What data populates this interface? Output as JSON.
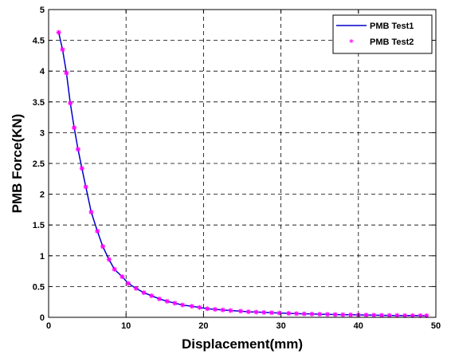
{
  "chart_data": {
    "type": "line",
    "title": "",
    "xlabel": "Displacement(mm)",
    "ylabel": "PMB Force(KN)",
    "xlim": [
      0,
      50
    ],
    "ylim": [
      0,
      5
    ],
    "xticks": [
      0,
      10,
      20,
      30,
      40,
      50
    ],
    "yticks": [
      0,
      0.5,
      1,
      1.5,
      2,
      2.5,
      3,
      3.5,
      4,
      4.5,
      5
    ],
    "grid": true,
    "legend_position": "top-right",
    "series": [
      {
        "name": "PMB Test1",
        "style": "line",
        "color": "#0000cc",
        "x": [
          1.3,
          1.8,
          2.3,
          2.8,
          3.3,
          3.8,
          4.3,
          4.8,
          5.5,
          6.3,
          7.0,
          7.8,
          8.5,
          9.5,
          10.3,
          11.3,
          12.3,
          13.3,
          14.3,
          15.3,
          16.3,
          17.3,
          18.5,
          19.5,
          20.5,
          21.5,
          22.5,
          23.5,
          24.8,
          25.8,
          26.8,
          27.8,
          28.8,
          29.8,
          31.0,
          32.0,
          33.0,
          34.0,
          35.0,
          36.0,
          37.0,
          38.0,
          39.0,
          40.0,
          41.0,
          42.0,
          43.0,
          44.0,
          45.0,
          46.0,
          47.0,
          48.0,
          48.8
        ],
        "y": [
          4.63,
          4.35,
          3.97,
          3.48,
          3.08,
          2.73,
          2.42,
          2.12,
          1.71,
          1.4,
          1.15,
          0.94,
          0.78,
          0.66,
          0.55,
          0.47,
          0.4,
          0.35,
          0.3,
          0.26,
          0.23,
          0.2,
          0.18,
          0.16,
          0.14,
          0.13,
          0.12,
          0.11,
          0.1,
          0.09,
          0.085,
          0.08,
          0.075,
          0.07,
          0.065,
          0.06,
          0.057,
          0.054,
          0.051,
          0.048,
          0.045,
          0.043,
          0.041,
          0.039,
          0.037,
          0.035,
          0.033,
          0.031,
          0.03,
          0.029,
          0.028,
          0.027,
          0.026
        ]
      },
      {
        "name": "PMB Test2",
        "style": "markers",
        "color": "#ff00ff",
        "marker": "*",
        "x": [
          1.3,
          1.8,
          2.3,
          2.8,
          3.3,
          3.8,
          4.3,
          4.8,
          5.5,
          6.3,
          7.0,
          7.8,
          8.5,
          9.5,
          10.3,
          11.3,
          12.3,
          13.3,
          14.3,
          15.3,
          16.3,
          17.3,
          18.5,
          19.5,
          20.5,
          21.5,
          22.5,
          23.5,
          24.8,
          25.8,
          26.8,
          27.8,
          28.8,
          29.8,
          31.0,
          32.0,
          33.0,
          34.0,
          35.0,
          36.0,
          37.0,
          38.0,
          39.0,
          40.0,
          41.0,
          42.0,
          43.0,
          44.0,
          45.0,
          46.0,
          47.0,
          48.0,
          48.8
        ],
        "y": [
          4.63,
          4.35,
          3.97,
          3.48,
          3.08,
          2.73,
          2.42,
          2.12,
          1.71,
          1.4,
          1.15,
          0.94,
          0.78,
          0.66,
          0.55,
          0.47,
          0.4,
          0.35,
          0.3,
          0.26,
          0.23,
          0.2,
          0.18,
          0.16,
          0.14,
          0.13,
          0.12,
          0.11,
          0.1,
          0.09,
          0.085,
          0.08,
          0.075,
          0.07,
          0.065,
          0.06,
          0.057,
          0.054,
          0.051,
          0.048,
          0.045,
          0.043,
          0.041,
          0.039,
          0.037,
          0.035,
          0.033,
          0.031,
          0.03,
          0.029,
          0.028,
          0.027,
          0.026
        ]
      }
    ]
  }
}
